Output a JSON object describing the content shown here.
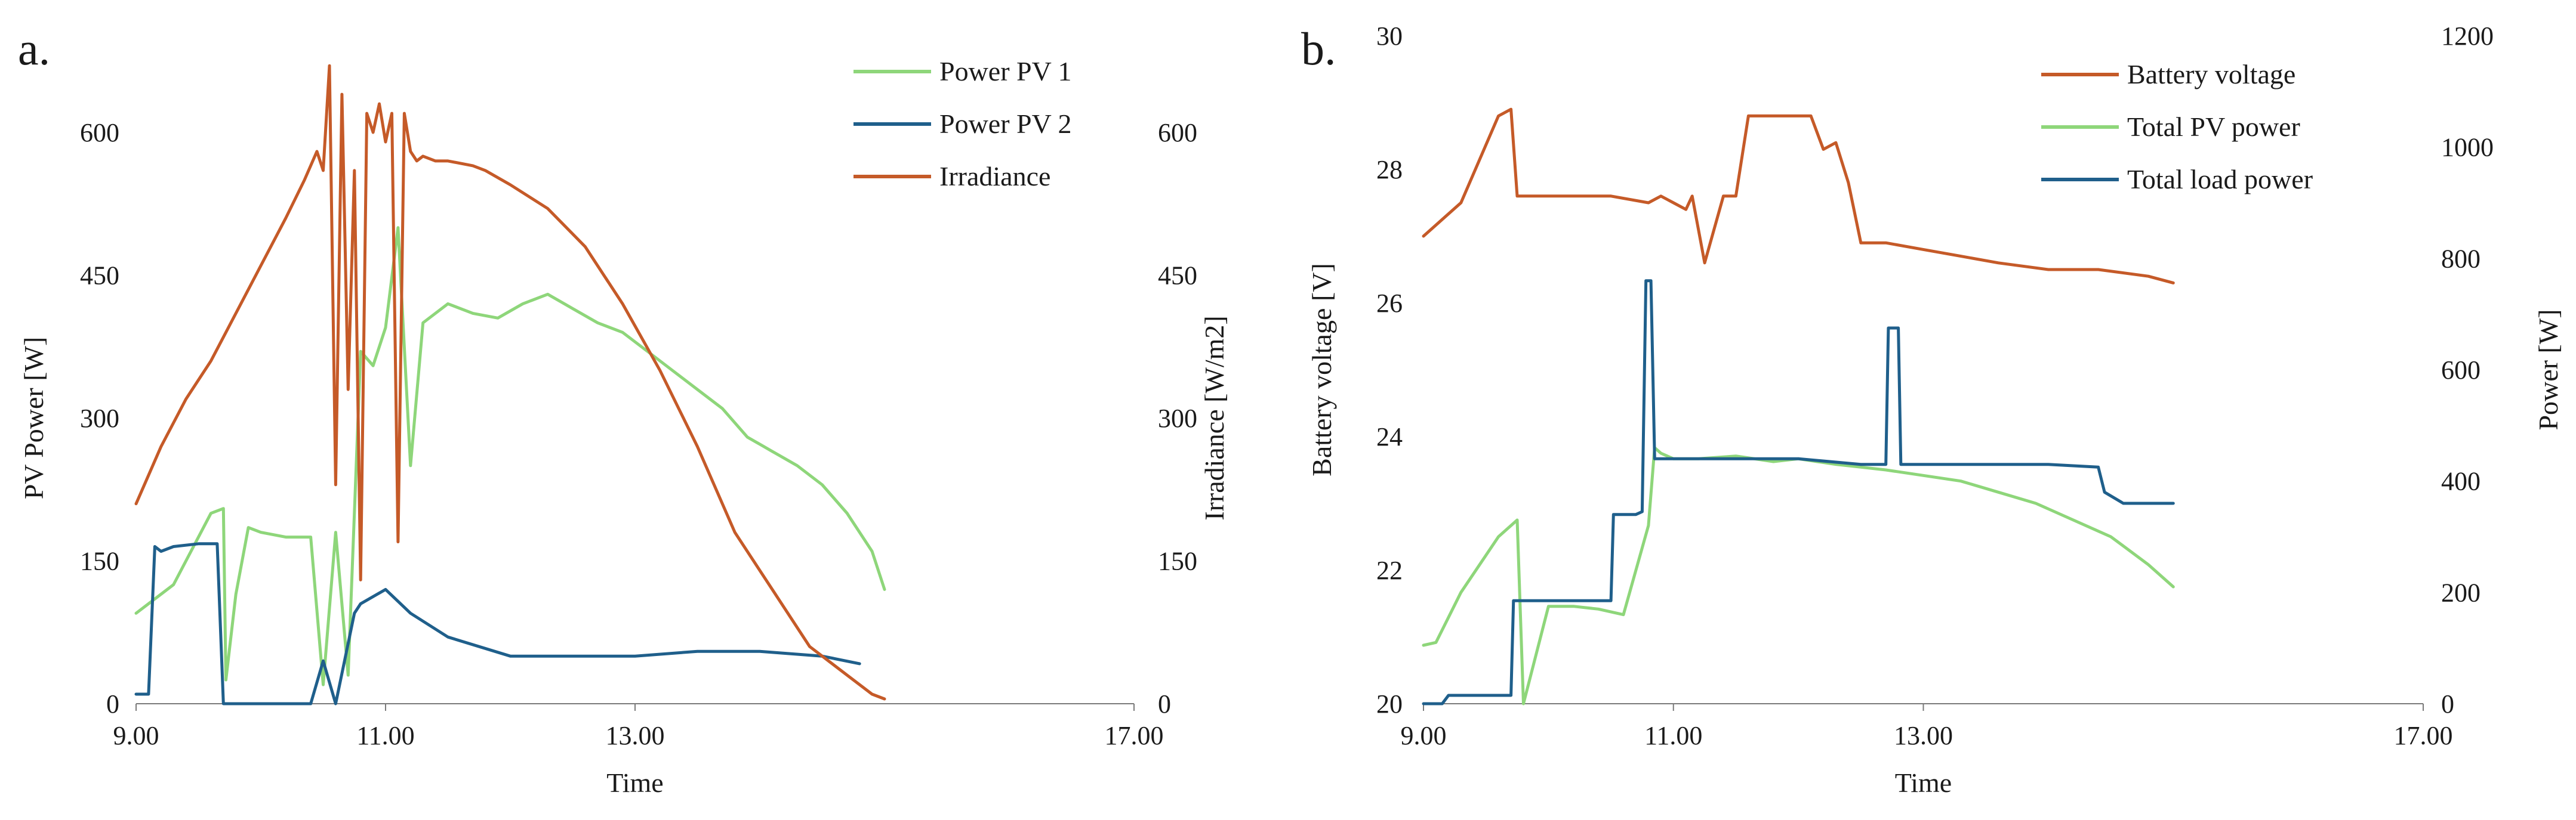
{
  "colors": {
    "orange": "#C55A28",
    "green": "#8ED67A",
    "blue": "#1F5F8B",
    "axis": "#7a7a7a",
    "text": "#1a1a1a"
  },
  "chart_data": [
    {
      "type": "line",
      "panel_label": "a.",
      "xlabel": "Time",
      "ylabel": "PV Power [W]",
      "ylabel_right": "Irradiance [W/m2]",
      "xlim": [
        9.0,
        17.0
      ],
      "ylim": [
        0,
        600
      ],
      "ylim_right": [
        0,
        600
      ],
      "x_ticks": [
        9.0,
        11.0,
        13.0,
        17.0
      ],
      "x_tick_labels": [
        "9.00",
        "11.00",
        "13.00",
        "17.00"
      ],
      "y_ticks": [
        0,
        150,
        300,
        450,
        600
      ],
      "y_tick_labels": [
        "0",
        "150",
        "300",
        "450",
        "600"
      ],
      "y_ticks_right": [
        0,
        150,
        300,
        450,
        600
      ],
      "y_tick_labels_right": [
        "0",
        "150",
        "300",
        "450",
        "600"
      ],
      "legend_position": "top-right",
      "series": [
        {
          "name": "Power PV 1",
          "color": "#8ED67A",
          "axis": "left",
          "x": [
            9.0,
            9.3,
            9.6,
            9.7,
            9.72,
            9.8,
            9.9,
            10.0,
            10.2,
            10.4,
            10.5,
            10.6,
            10.7,
            10.8,
            10.9,
            11.0,
            11.1,
            11.2,
            11.3,
            11.5,
            11.7,
            11.9,
            12.1,
            12.3,
            12.5,
            12.7,
            12.9,
            13.1,
            13.3,
            13.5,
            13.7,
            13.9,
            14.1,
            14.3,
            14.5,
            14.7,
            14.9,
            15.0
          ],
          "y": [
            95,
            125,
            200,
            205,
            25,
            115,
            185,
            180,
            175,
            175,
            20,
            180,
            30,
            370,
            355,
            395,
            500,
            250,
            400,
            420,
            410,
            405,
            420,
            430,
            415,
            400,
            390,
            370,
            350,
            330,
            310,
            280,
            265,
            250,
            230,
            200,
            160,
            120
          ]
        },
        {
          "name": "Power PV 2",
          "color": "#1F5F8B",
          "axis": "left",
          "x": [
            9.0,
            9.1,
            9.15,
            9.2,
            9.3,
            9.5,
            9.65,
            9.7,
            9.75,
            10.0,
            10.4,
            10.5,
            10.6,
            10.75,
            10.8,
            11.0,
            11.2,
            11.5,
            12.0,
            12.5,
            13.0,
            13.5,
            14.0,
            14.5,
            14.8
          ],
          "y": [
            10,
            10,
            165,
            160,
            165,
            168,
            168,
            0,
            0,
            0,
            0,
            45,
            0,
            95,
            105,
            120,
            95,
            70,
            50,
            50,
            50,
            55,
            55,
            50,
            42
          ]
        },
        {
          "name": "Irradiance",
          "color": "#C55A28",
          "axis": "right",
          "x": [
            9.0,
            9.2,
            9.4,
            9.6,
            9.8,
            10.0,
            10.2,
            10.35,
            10.45,
            10.5,
            10.55,
            10.6,
            10.65,
            10.7,
            10.75,
            10.8,
            10.85,
            10.9,
            10.95,
            11.0,
            11.05,
            11.1,
            11.15,
            11.2,
            11.25,
            11.3,
            11.4,
            11.5,
            11.7,
            11.8,
            12.0,
            12.3,
            12.6,
            12.9,
            13.2,
            13.5,
            13.8,
            14.1,
            14.4,
            14.7,
            14.9,
            15.0
          ],
          "y": [
            210,
            270,
            320,
            360,
            410,
            460,
            510,
            550,
            580,
            560,
            670,
            230,
            640,
            330,
            560,
            130,
            620,
            600,
            630,
            590,
            620,
            170,
            620,
            580,
            570,
            575,
            570,
            570,
            565,
            560,
            545,
            520,
            480,
            420,
            350,
            270,
            180,
            120,
            60,
            30,
            10,
            5
          ]
        }
      ]
    },
    {
      "type": "line",
      "panel_label": "b.",
      "xlabel": "Time",
      "ylabel": "Battery voltage [V]",
      "ylabel_right": "Power [W]",
      "xlim": [
        9.0,
        17.0
      ],
      "ylim": [
        20,
        30
      ],
      "ylim_right": [
        0,
        1200
      ],
      "x_ticks": [
        9.0,
        11.0,
        13.0,
        17.0
      ],
      "x_tick_labels": [
        "9.00",
        "11.00",
        "13.00",
        "17.00"
      ],
      "y_ticks": [
        20,
        22,
        24,
        26,
        28,
        30
      ],
      "y_tick_labels": [
        "20",
        "22",
        "24",
        "26",
        "28",
        "30"
      ],
      "y_ticks_right": [
        0,
        200,
        400,
        600,
        800,
        1000,
        1200
      ],
      "y_tick_labels_right": [
        "0",
        "200",
        "400",
        "600",
        "800",
        "1000",
        "1200"
      ],
      "legend_position": "top-right",
      "series": [
        {
          "name": "Battery voltage",
          "color": "#C55A28",
          "axis": "left",
          "x": [
            9.0,
            9.3,
            9.6,
            9.7,
            9.75,
            10.0,
            10.5,
            10.8,
            10.9,
            11.0,
            11.1,
            11.15,
            11.25,
            11.4,
            11.5,
            11.6,
            11.7,
            11.8,
            11.9,
            12.0,
            12.1,
            12.2,
            12.3,
            12.4,
            12.5,
            12.7,
            13.0,
            13.3,
            13.6,
            14.0,
            14.4,
            14.8,
            15.0
          ],
          "y": [
            27.0,
            27.5,
            28.8,
            28.9,
            27.6,
            27.6,
            27.6,
            27.5,
            27.6,
            27.5,
            27.4,
            27.6,
            26.6,
            27.6,
            27.6,
            28.8,
            28.8,
            28.8,
            28.8,
            28.8,
            28.8,
            28.3,
            28.4,
            27.8,
            26.9,
            26.9,
            26.8,
            26.7,
            26.6,
            26.5,
            26.5,
            26.4,
            26.3
          ]
        },
        {
          "name": "Total PV power",
          "color": "#8ED67A",
          "axis": "right",
          "x": [
            9.0,
            9.1,
            9.3,
            9.6,
            9.75,
            9.8,
            10.0,
            10.2,
            10.4,
            10.6,
            10.8,
            10.85,
            10.9,
            11.0,
            11.2,
            11.5,
            11.8,
            12.0,
            12.3,
            12.5,
            12.7,
            13.0,
            13.3,
            13.6,
            13.9,
            14.2,
            14.5,
            14.8,
            15.0
          ],
          "y": [
            105,
            110,
            200,
            300,
            330,
            0,
            175,
            175,
            170,
            160,
            320,
            460,
            450,
            440,
            440,
            445,
            435,
            440,
            430,
            425,
            420,
            410,
            400,
            380,
            360,
            330,
            300,
            250,
            210
          ]
        },
        {
          "name": "Total load power",
          "color": "#1F5F8B",
          "axis": "right",
          "x": [
            9.0,
            9.15,
            9.2,
            9.7,
            9.72,
            10.0,
            10.5,
            10.52,
            10.7,
            10.75,
            10.78,
            10.82,
            10.85,
            11.0,
            11.5,
            12.0,
            12.5,
            12.7,
            12.72,
            12.8,
            12.82,
            13.0,
            13.5,
            14.0,
            14.4,
            14.45,
            14.6,
            15.0
          ],
          "y": [
            0,
            0,
            15,
            15,
            185,
            185,
            185,
            340,
            340,
            345,
            760,
            760,
            440,
            440,
            440,
            440,
            430,
            430,
            675,
            675,
            430,
            430,
            430,
            430,
            425,
            380,
            360,
            360
          ]
        }
      ]
    }
  ]
}
